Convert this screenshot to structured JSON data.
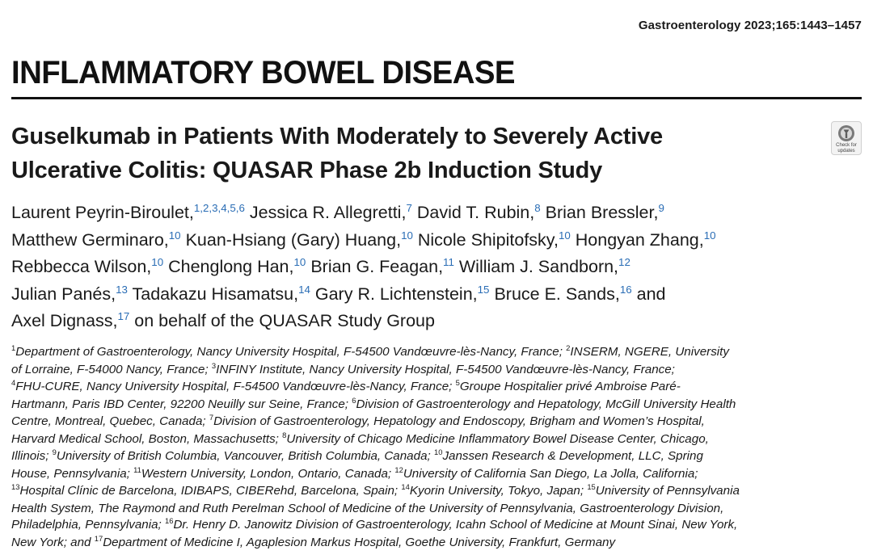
{
  "journal_ref": "Gastroenterology 2023;165:1443–1457",
  "section": "INFLAMMATORY BOWEL DISEASE",
  "title_lines": [
    "Guselkumab in Patients With Moderately to Severely Active",
    "Ulcerative Colitis: QUASAR Phase 2b Induction Study"
  ],
  "check_badge": {
    "icon": "crossmark-icon",
    "line1": "Check for",
    "line2": "updates"
  },
  "authors": [
    {
      "name": "Laurent Peyrin-Biroulet,",
      "sup": "1,2,3,4,5,6"
    },
    {
      "name": "Jessica R. Allegretti,",
      "sup": "7"
    },
    {
      "name": "David T. Rubin,",
      "sup": "8"
    },
    {
      "name": "Brian Bressler,",
      "sup": "9"
    },
    {
      "name": "Matthew Germinaro,",
      "sup": "10"
    },
    {
      "name": "Kuan-Hsiang (Gary) Huang,",
      "sup": "10"
    },
    {
      "name": "Nicole Shipitofsky,",
      "sup": "10"
    },
    {
      "name": "Hongyan Zhang,",
      "sup": "10"
    },
    {
      "name": "Rebbecca Wilson,",
      "sup": "10"
    },
    {
      "name": "Chenglong Han,",
      "sup": "10"
    },
    {
      "name": "Brian G. Feagan,",
      "sup": "11"
    },
    {
      "name": "William J. Sandborn,",
      "sup": "12"
    },
    {
      "name": "Julian Panés,",
      "sup": "13"
    },
    {
      "name": "Tadakazu Hisamatsu,",
      "sup": "14"
    },
    {
      "name": "Gary R. Lichtenstein,",
      "sup": "15"
    },
    {
      "name": "Bruce E. Sands,",
      "sup": "16"
    },
    {
      "name": "Axel Dignass,",
      "sup": "17"
    }
  ],
  "authors_conjunction": "and",
  "authors_suffix": "on behalf of the QUASAR Study Group",
  "affiliations": [
    {
      "n": "1",
      "text": "Department of Gastroenterology, Nancy University Hospital, F-54500 Vandœuvre-lès-Nancy, France;"
    },
    {
      "n": "2",
      "text": "INSERM, NGERE, University of Lorraine, F-54000 Nancy, France;"
    },
    {
      "n": "3",
      "text": "INFINY Institute, Nancy University Hospital, F-54500 Vandœuvre-lès-Nancy, France;"
    },
    {
      "n": "4",
      "text": "FHU-CURE, Nancy University Hospital, F-54500 Vandœuvre-lès-Nancy, France;"
    },
    {
      "n": "5",
      "text": "Groupe Hospitalier privé Ambroise Paré-Hartmann, Paris IBD Center, 92200 Neuilly sur Seine, France;"
    },
    {
      "n": "6",
      "text": "Division of Gastroenterology and Hepatology, McGill University Health Centre, Montreal, Quebec, Canada;"
    },
    {
      "n": "7",
      "text": "Division of Gastroenterology, Hepatology and Endoscopy, Brigham and Women’s Hospital, Harvard Medical School, Boston, Massachusetts;"
    },
    {
      "n": "8",
      "text": "University of Chicago Medicine Inflammatory Bowel Disease Center, Chicago, Illinois;"
    },
    {
      "n": "9",
      "text": "University of British Columbia, Vancouver, British Columbia, Canada;"
    },
    {
      "n": "10",
      "text": "Janssen Research & Development, LLC, Spring House, Pennsylvania;"
    },
    {
      "n": "11",
      "text": "Western University, London, Ontario, Canada;"
    },
    {
      "n": "12",
      "text": "University of California San Diego, La Jolla, California;"
    },
    {
      "n": "13",
      "text": "Hospital Clínic de Barcelona, IDIBAPS, CIBERehd, Barcelona, Spain;"
    },
    {
      "n": "14",
      "text": "Kyorin University, Tokyo, Japan;"
    },
    {
      "n": "15",
      "text": "University of Pennsylvania Health System, The Raymond and Ruth Perelman School of Medicine of the University of Pennsylvania, Gastroenterology Division, Philadelphia, Pennsylvania;"
    },
    {
      "n": "16",
      "text": "Dr. Henry D. Janowitz Division of Gastroenterology, Icahn School of Medicine at Mount Sinai, New York, New York; and"
    },
    {
      "n": "17",
      "text": "Department of Medicine I, Agaplesion Markus Hospital, Goethe University, Frankfurt, Germany"
    }
  ],
  "affiliation_lines": [
    [
      {
        "sup": "1"
      },
      {
        "t": "Department of Gastroenterology, Nancy University Hospital, F-54500 Vandœuvre-lès-Nancy, France; "
      },
      {
        "sup": "2"
      },
      {
        "t": "INSERM, NGERE, University"
      }
    ],
    [
      {
        "t": "of Lorraine, F-54000 Nancy, France; "
      },
      {
        "sup": "3"
      },
      {
        "t": "INFINY Institute, Nancy University Hospital, F-54500 Vandœuvre-lès-Nancy, France;"
      }
    ],
    [
      {
        "sup": "4"
      },
      {
        "t": "FHU-CURE, Nancy University Hospital, F-54500 Vandœuvre-lès-Nancy, France; "
      },
      {
        "sup": "5"
      },
      {
        "t": "Groupe Hospitalier privé Ambroise Paré-"
      }
    ],
    [
      {
        "t": "Hartmann, Paris IBD Center, 92200 Neuilly sur Seine, France; "
      },
      {
        "sup": "6"
      },
      {
        "t": "Division of Gastroenterology and Hepatology, McGill University Health"
      }
    ],
    [
      {
        "t": "Centre, Montreal, Quebec, Canada; "
      },
      {
        "sup": "7"
      },
      {
        "t": "Division of Gastroenterology, Hepatology and Endoscopy, Brigham and Women’s Hospital,"
      }
    ],
    [
      {
        "t": "Harvard Medical School, Boston, Massachusetts; "
      },
      {
        "sup": "8"
      },
      {
        "t": "University of Chicago Medicine Inflammatory Bowel Disease Center, Chicago,"
      }
    ],
    [
      {
        "t": "Illinois; "
      },
      {
        "sup": "9"
      },
      {
        "t": "University of British Columbia, Vancouver, British Columbia, Canada; "
      },
      {
        "sup": "10"
      },
      {
        "t": "Janssen Research & Development, LLC, Spring"
      }
    ],
    [
      {
        "t": "House, Pennsylvania; "
      },
      {
        "sup": "11"
      },
      {
        "t": "Western University, London, Ontario, Canada; "
      },
      {
        "sup": "12"
      },
      {
        "t": "University of California San Diego, La Jolla, California;"
      }
    ],
    [
      {
        "sup": "13"
      },
      {
        "t": "Hospital Clínic de Barcelona, IDIBAPS, CIBERehd, Barcelona, Spain; "
      },
      {
        "sup": "14"
      },
      {
        "t": "Kyorin University, Tokyo, Japan; "
      },
      {
        "sup": "15"
      },
      {
        "t": "University of Pennsylvania"
      }
    ],
    [
      {
        "t": "Health System, The Raymond and Ruth Perelman School of Medicine of the University of Pennsylvania, Gastroenterology Division,"
      }
    ],
    [
      {
        "t": "Philadelphia, Pennsylvania; "
      },
      {
        "sup": "16"
      },
      {
        "t": "Dr. Henry D. Janowitz Division of Gastroenterology, Icahn School of Medicine at Mount Sinai, New York,"
      }
    ],
    [
      {
        "t": "New York; and "
      },
      {
        "sup": "17"
      },
      {
        "t": "Department of Medicine I, Agaplesion Markus Hospital, Goethe University, Frankfurt, Germany"
      }
    ]
  ]
}
